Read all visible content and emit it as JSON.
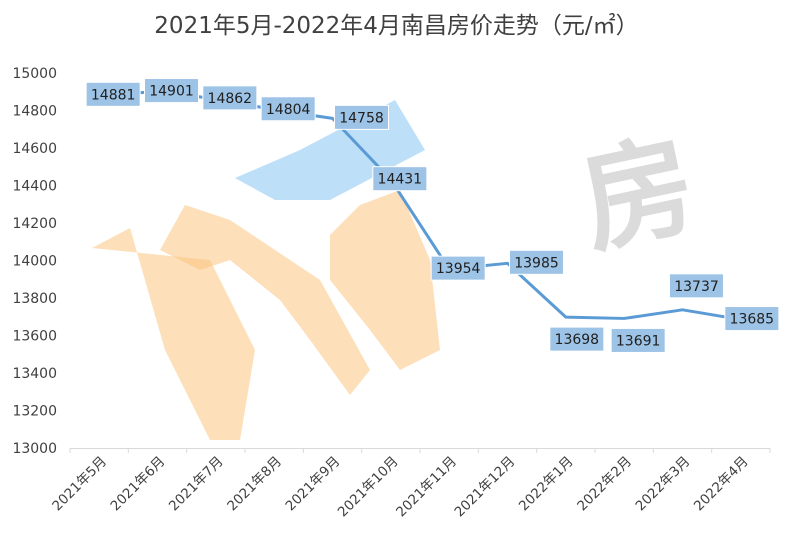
{
  "chart_data": {
    "type": "line",
    "title": "2021年5月-2022年4月南昌房价走势（元/㎡）",
    "categories": [
      "2021年5月",
      "2021年6月",
      "2021年7月",
      "2021年8月",
      "2021年9月",
      "2021年10月",
      "2021年11月",
      "2021年12月",
      "2022年1月",
      "2022年2月",
      "2022年3月",
      "2022年4月"
    ],
    "series": [
      {
        "values": [
          14881,
          14901,
          14862,
          14804,
          14758,
          14431,
          13954,
          13985,
          13698,
          13691,
          13737,
          13685
        ]
      }
    ],
    "ylim": [
      13000,
      15000
    ],
    "yticks": [
      13000,
      13200,
      13400,
      13600,
      13800,
      14000,
      14200,
      14400,
      14600,
      14800,
      15000
    ],
    "xlabel": "",
    "ylabel": "",
    "grid": false,
    "legend": "none",
    "data_labels": true,
    "colors": {
      "line": "#5b9bd5",
      "label_box": "#9dc3e6",
      "label_border": "#ffffff",
      "axis": "#d9d9d9"
    },
    "watermark": "房"
  }
}
